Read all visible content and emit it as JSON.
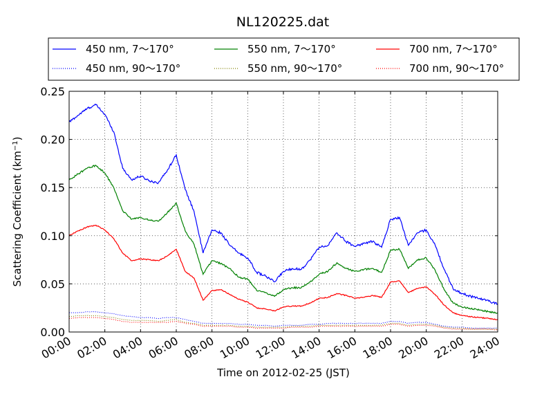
{
  "chart_data": {
    "type": "line",
    "title": "NL120225.dat",
    "xlabel": "Time on 2012-02-25 (JST)",
    "ylabel": "Scattering Coefficient (km",
    "ylabel_sup": "−1",
    "ylabel_end": ")",
    "xlim": [
      0,
      24
    ],
    "ylim": [
      0,
      0.25
    ],
    "x_ticks": [
      0,
      2,
      4,
      6,
      8,
      10,
      12,
      14,
      16,
      18,
      20,
      22,
      24
    ],
    "x_tick_labels": [
      "00:00",
      "02:00",
      "04:00",
      "06:00",
      "08:00",
      "10:00",
      "12:00",
      "14:00",
      "16:00",
      "18:00",
      "20:00",
      "22:00",
      "24:00"
    ],
    "y_ticks": [
      0,
      0.05,
      0.1,
      0.15,
      0.2,
      0.25
    ],
    "y_tick_labels": [
      "0.00",
      "0.05",
      "0.10",
      "0.15",
      "0.20",
      "0.25"
    ],
    "grid": true,
    "legend_position": "top, outside plot, 3 columns",
    "x": [
      0,
      0.5,
      1,
      1.5,
      2,
      2.5,
      3,
      3.5,
      4,
      4.5,
      5,
      5.5,
      6,
      6.5,
      7,
      7.5,
      8,
      8.5,
      9,
      9.5,
      10,
      10.5,
      11,
      11.5,
      12,
      12.5,
      13,
      13.5,
      14,
      14.5,
      15,
      15.5,
      16,
      16.5,
      17,
      17.5,
      18,
      18.5,
      19,
      19.5,
      20,
      20.5,
      21,
      21.5,
      22,
      22.5,
      23,
      23.5,
      24
    ],
    "series": [
      {
        "name": "450 nm, 7～170°",
        "color": "#0000ff",
        "style": "solid",
        "values": [
          0.218,
          0.225,
          0.232,
          0.236,
          0.226,
          0.208,
          0.17,
          0.158,
          0.162,
          0.157,
          0.155,
          0.168,
          0.184,
          0.148,
          0.125,
          0.082,
          0.106,
          0.103,
          0.09,
          0.082,
          0.077,
          0.062,
          0.058,
          0.052,
          0.063,
          0.066,
          0.065,
          0.075,
          0.088,
          0.09,
          0.103,
          0.094,
          0.089,
          0.092,
          0.094,
          0.088,
          0.117,
          0.119,
          0.09,
          0.103,
          0.106,
          0.09,
          0.065,
          0.045,
          0.04,
          0.037,
          0.035,
          0.032,
          0.029
        ]
      },
      {
        "name": "550 nm, 7～170°",
        "color": "#008000",
        "style": "solid",
        "values": [
          0.158,
          0.164,
          0.17,
          0.173,
          0.165,
          0.15,
          0.126,
          0.117,
          0.119,
          0.116,
          0.115,
          0.124,
          0.134,
          0.105,
          0.091,
          0.06,
          0.074,
          0.071,
          0.066,
          0.057,
          0.055,
          0.043,
          0.041,
          0.037,
          0.044,
          0.046,
          0.046,
          0.052,
          0.06,
          0.063,
          0.072,
          0.066,
          0.063,
          0.065,
          0.066,
          0.062,
          0.085,
          0.086,
          0.066,
          0.075,
          0.077,
          0.064,
          0.044,
          0.03,
          0.026,
          0.024,
          0.023,
          0.021,
          0.02
        ]
      },
      {
        "name": "700 nm, 7～170°",
        "color": "#ff0000",
        "style": "solid",
        "values": [
          0.1,
          0.105,
          0.109,
          0.111,
          0.106,
          0.097,
          0.082,
          0.074,
          0.076,
          0.075,
          0.074,
          0.079,
          0.086,
          0.063,
          0.056,
          0.033,
          0.043,
          0.044,
          0.039,
          0.034,
          0.031,
          0.025,
          0.024,
          0.022,
          0.026,
          0.027,
          0.027,
          0.03,
          0.035,
          0.036,
          0.04,
          0.038,
          0.035,
          0.036,
          0.038,
          0.036,
          0.052,
          0.053,
          0.041,
          0.045,
          0.047,
          0.039,
          0.028,
          0.02,
          0.017,
          0.016,
          0.015,
          0.014,
          0.013
        ]
      },
      {
        "name": "450 nm, 90～170°",
        "color": "#0000ff",
        "style": "dotted",
        "values": [
          0.02,
          0.02,
          0.021,
          0.021,
          0.02,
          0.019,
          0.017,
          0.016,
          0.015,
          0.015,
          0.014,
          0.015,
          0.015,
          0.013,
          0.011,
          0.009,
          0.009,
          0.009,
          0.009,
          0.008,
          0.008,
          0.007,
          0.007,
          0.006,
          0.007,
          0.007,
          0.007,
          0.008,
          0.008,
          0.009,
          0.009,
          0.009,
          0.009,
          0.009,
          0.009,
          0.009,
          0.011,
          0.011,
          0.009,
          0.01,
          0.01,
          0.008,
          0.006,
          0.005,
          0.005,
          0.004,
          0.004,
          0.004,
          0.004
        ]
      },
      {
        "name": "550 nm, 90～170°",
        "color": "#808000",
        "style": "dotted",
        "values": [
          0.016,
          0.017,
          0.017,
          0.017,
          0.016,
          0.015,
          0.013,
          0.012,
          0.012,
          0.012,
          0.011,
          0.012,
          0.013,
          0.01,
          0.009,
          0.007,
          0.007,
          0.007,
          0.007,
          0.006,
          0.006,
          0.005,
          0.005,
          0.005,
          0.005,
          0.006,
          0.006,
          0.006,
          0.007,
          0.007,
          0.007,
          0.007,
          0.007,
          0.007,
          0.007,
          0.007,
          0.009,
          0.009,
          0.007,
          0.008,
          0.008,
          0.007,
          0.005,
          0.004,
          0.004,
          0.003,
          0.003,
          0.003,
          0.003
        ]
      },
      {
        "name": "700 nm, 90～170°",
        "color": "#ff0000",
        "style": "dotted",
        "values": [
          0.014,
          0.015,
          0.015,
          0.015,
          0.014,
          0.013,
          0.011,
          0.01,
          0.01,
          0.01,
          0.01,
          0.01,
          0.011,
          0.009,
          0.008,
          0.006,
          0.006,
          0.006,
          0.006,
          0.005,
          0.005,
          0.004,
          0.004,
          0.004,
          0.004,
          0.005,
          0.005,
          0.005,
          0.006,
          0.006,
          0.006,
          0.006,
          0.006,
          0.006,
          0.006,
          0.006,
          0.008,
          0.008,
          0.006,
          0.007,
          0.007,
          0.006,
          0.004,
          0.003,
          0.003,
          0.003,
          0.003,
          0.003,
          0.002
        ]
      }
    ]
  }
}
